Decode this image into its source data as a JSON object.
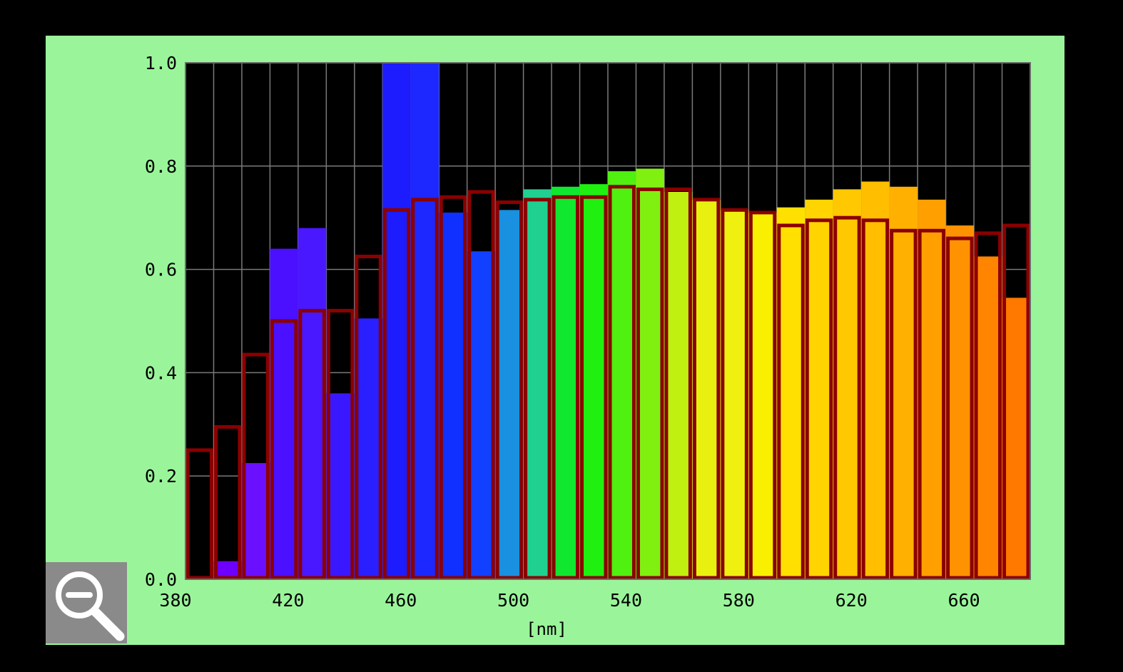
{
  "chart_data": {
    "type": "bar",
    "xlabel": "[nm]",
    "ylabel": "",
    "xlim": [
      380,
      680
    ],
    "ylim": [
      0,
      1.0
    ],
    "x_ticks": [
      {
        "value": 380,
        "label": "380"
      },
      {
        "value": 420,
        "label": "420"
      },
      {
        "value": 460,
        "label": "460"
      },
      {
        "value": 500,
        "label": "500"
      },
      {
        "value": 540,
        "label": "540"
      },
      {
        "value": 580,
        "label": "580"
      },
      {
        "value": 620,
        "label": "620"
      },
      {
        "value": 660,
        "label": "660"
      }
    ],
    "y_ticks": [
      {
        "value": 0.0,
        "label": "0.0"
      },
      {
        "value": 0.2,
        "label": "0.2"
      },
      {
        "value": 0.4,
        "label": "0.4"
      },
      {
        "value": 0.6,
        "label": "0.6"
      },
      {
        "value": 0.8,
        "label": "0.8"
      },
      {
        "value": 1.0,
        "label": "1.0"
      }
    ],
    "grid": true,
    "bin_width": 10,
    "categories": [
      380,
      390,
      400,
      410,
      420,
      430,
      440,
      450,
      460,
      470,
      480,
      490,
      500,
      510,
      520,
      530,
      540,
      550,
      560,
      570,
      580,
      590,
      600,
      610,
      620,
      630,
      640,
      650,
      660,
      670
    ],
    "series": [
      {
        "style": "filled",
        "values": [
          0.0,
          0.035,
          0.225,
          0.64,
          0.68,
          0.36,
          0.505,
          1.0,
          1.0,
          0.71,
          0.635,
          0.715,
          0.755,
          0.76,
          0.765,
          0.79,
          0.795,
          0.75,
          0.735,
          0.715,
          0.71,
          0.72,
          0.735,
          0.755,
          0.77,
          0.76,
          0.735,
          0.685,
          0.625,
          0.545
        ],
        "colors": [
          "#5a00ff",
          "#6e00ff",
          "#6a10ff",
          "#4a10ff",
          "#4a18ff",
          "#3a18ff",
          "#2a20ff",
          "#1c1cff",
          "#1c28ff",
          "#1030ff",
          "#1240ff",
          "#1a90e0",
          "#20d090",
          "#10e830",
          "#20f010",
          "#50f010",
          "#80f010",
          "#c0f010",
          "#e8f010",
          "#f0f010",
          "#f8f000",
          "#ffe000",
          "#ffd400",
          "#ffc800",
          "#ffbe00",
          "#ffb000",
          "#ffa000",
          "#ff9200",
          "#ff8400",
          "#ff7800"
        ]
      },
      {
        "style": "outline",
        "color": "#8b0000",
        "values": [
          0.25,
          0.295,
          0.435,
          0.5,
          0.52,
          0.52,
          0.625,
          0.715,
          0.735,
          0.74,
          0.75,
          0.73,
          0.735,
          0.74,
          0.74,
          0.76,
          0.755,
          0.755,
          0.735,
          0.715,
          0.71,
          0.685,
          0.695,
          0.7,
          0.695,
          0.675,
          0.675,
          0.66,
          0.67,
          0.685
        ]
      }
    ]
  },
  "zoom_control": {
    "icon": "zoom-out-icon"
  },
  "colors": {
    "panel_background": "#9af59a",
    "plot_background": "#000000",
    "grid": "#7a7a7a",
    "outline_bars": "#8b0000"
  }
}
